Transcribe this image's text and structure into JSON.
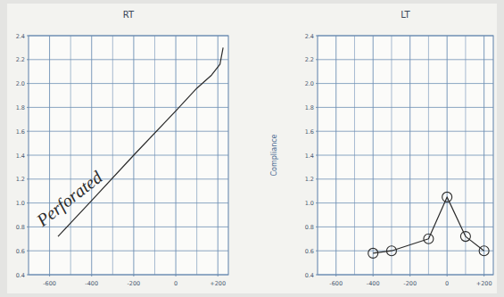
{
  "chart_data": [
    {
      "type": "line",
      "title": "RT",
      "x": [
        -560,
        -400,
        -200,
        0,
        100,
        170,
        210,
        225
      ],
      "values": [
        0.72,
        1.02,
        1.4,
        1.77,
        1.96,
        2.07,
        2.16,
        2.3
      ],
      "xlim": [
        -700,
        250
      ],
      "xticks": [
        -600,
        -400,
        -200,
        0,
        {
          "value": 200,
          "label": "+200"
        }
      ],
      "ylim": [
        0.4,
        2.4
      ],
      "yticks": [
        0.4,
        0.6,
        0.8,
        {
          "value": 1,
          "label": "1.0"
        },
        1.2,
        1.4,
        1.6,
        1.8,
        {
          "value": 2,
          "label": "2.0"
        },
        2.2,
        2.4
      ],
      "grid": true,
      "marker": "none",
      "line_style": "solid",
      "color": "#2b2b2b",
      "annotation": "Perforated"
    },
    {
      "type": "line",
      "title": "LT",
      "ylabel": "Compliance",
      "x": [
        -400,
        -300,
        -100,
        0,
        100,
        200
      ],
      "values": [
        0.58,
        0.6,
        0.7,
        1.05,
        0.72,
        0.6
      ],
      "xlim": [
        -700,
        250
      ],
      "xticks": [
        -600,
        -400,
        -200,
        0,
        {
          "value": 200,
          "label": "+200"
        }
      ],
      "ylim": [
        0.4,
        2.4
      ],
      "yticks": [
        0.4,
        0.6,
        0.8,
        {
          "value": 1,
          "label": "1.0"
        },
        1.2,
        1.4,
        1.6,
        1.8,
        {
          "value": 2,
          "label": "2.0"
        },
        2.2,
        2.4
      ],
      "grid": true,
      "marker": "circle",
      "line_style": "solid",
      "color": "#2b2b2b"
    }
  ]
}
